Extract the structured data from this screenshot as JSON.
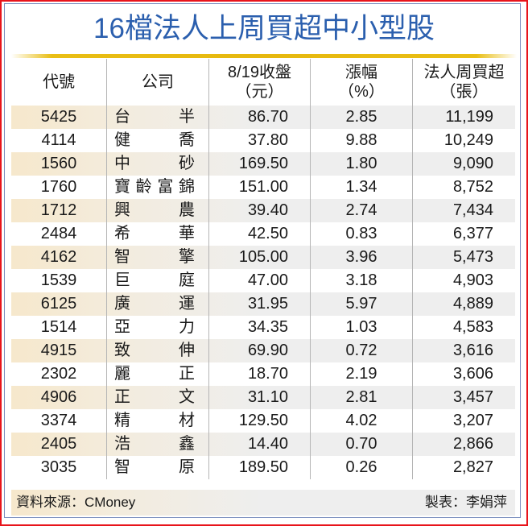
{
  "title": "16檔法人上周買超中小型股",
  "colors": {
    "title": "#2b5fae",
    "outer_border": "#e8141b",
    "inner_border": "#7b8fbf",
    "gold_bar": "#e6b80e",
    "stripe_left": "#f6e8cc",
    "stripe_right": "#eeeeee"
  },
  "headers": {
    "code": {
      "line1": "代號",
      "line2": ""
    },
    "company": {
      "line1": "公司",
      "line2": ""
    },
    "close": {
      "line1": "8/19收盤",
      "line2": "（元）"
    },
    "change": {
      "line1": "漲幅",
      "line2": "（%）"
    },
    "net_buy": {
      "line1": "法人周買超",
      "line2": "（張）"
    }
  },
  "rows": [
    {
      "code": "5425",
      "company": "台半",
      "close": "86.70",
      "change": "2.85",
      "net_buy": "11,199"
    },
    {
      "code": "4114",
      "company": "健喬",
      "close": "37.80",
      "change": "9.88",
      "net_buy": "10,249"
    },
    {
      "code": "1560",
      "company": "中砂",
      "close": "169.50",
      "change": "1.80",
      "net_buy": "9,090"
    },
    {
      "code": "1760",
      "company": "寶齡富錦",
      "close": "151.00",
      "change": "1.34",
      "net_buy": "8,752"
    },
    {
      "code": "1712",
      "company": "興農",
      "close": "39.40",
      "change": "2.74",
      "net_buy": "7,434"
    },
    {
      "code": "2484",
      "company": "希華",
      "close": "42.50",
      "change": "0.83",
      "net_buy": "6,377"
    },
    {
      "code": "4162",
      "company": "智擎",
      "close": "105.00",
      "change": "3.96",
      "net_buy": "5,473"
    },
    {
      "code": "1539",
      "company": "巨庭",
      "close": "47.00",
      "change": "3.18",
      "net_buy": "4,903"
    },
    {
      "code": "6125",
      "company": "廣運",
      "close": "31.95",
      "change": "5.97",
      "net_buy": "4,889"
    },
    {
      "code": "1514",
      "company": "亞力",
      "close": "34.35",
      "change": "1.03",
      "net_buy": "4,583"
    },
    {
      "code": "4915",
      "company": "致伸",
      "close": "69.90",
      "change": "0.72",
      "net_buy": "3,616"
    },
    {
      "code": "2302",
      "company": "麗正",
      "close": "18.70",
      "change": "2.19",
      "net_buy": "3,606"
    },
    {
      "code": "4906",
      "company": "正文",
      "close": "31.10",
      "change": "2.81",
      "net_buy": "3,457"
    },
    {
      "code": "3374",
      "company": "精材",
      "close": "129.50",
      "change": "4.02",
      "net_buy": "3,207"
    },
    {
      "code": "2405",
      "company": "浩鑫",
      "close": "14.40",
      "change": "0.70",
      "net_buy": "2,866"
    },
    {
      "code": "3035",
      "company": "智原",
      "close": "189.50",
      "change": "0.26",
      "net_buy": "2,827"
    }
  ],
  "footer": {
    "source": "資料來源：CMoney",
    "maker": "製表：李娟萍"
  }
}
